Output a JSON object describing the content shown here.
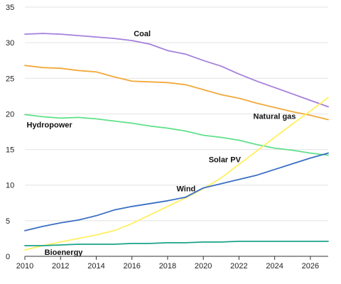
{
  "chart_data": {
    "type": "line",
    "title": "",
    "xlabel": "",
    "ylabel": "",
    "xlim": [
      2010,
      2027
    ],
    "ylim": [
      0,
      35
    ],
    "x_ticks": [
      2010,
      2012,
      2014,
      2016,
      2018,
      2020,
      2022,
      2024,
      2026
    ],
    "y_ticks": [
      0,
      5,
      10,
      15,
      20,
      25,
      30,
      35
    ],
    "grid": true,
    "legend": "none",
    "x": [
      2010,
      2011,
      2012,
      2013,
      2014,
      2015,
      2016,
      2017,
      2018,
      2019,
      2020,
      2021,
      2022,
      2023,
      2024,
      2025,
      2026,
      2027
    ],
    "series": [
      {
        "name": "Coal",
        "color": "#a57fdc",
        "values": [
          31.2,
          31.3,
          31.2,
          31.0,
          30.8,
          30.6,
          30.3,
          29.8,
          28.9,
          28.4,
          27.5,
          26.7,
          25.6,
          24.6,
          23.7,
          22.8,
          21.9,
          21.0
        ]
      },
      {
        "name": "Natural gas",
        "color": "#f2a93b",
        "values": [
          26.8,
          26.5,
          26.4,
          26.1,
          25.9,
          25.2,
          24.6,
          24.5,
          24.4,
          24.1,
          23.4,
          22.7,
          22.2,
          21.5,
          20.9,
          20.3,
          19.8,
          19.2
        ]
      },
      {
        "name": "Hydropower",
        "color": "#5fe08a",
        "values": [
          19.9,
          19.6,
          19.4,
          19.5,
          19.3,
          19.0,
          18.7,
          18.3,
          18.0,
          17.6,
          17.0,
          16.7,
          16.3,
          15.7,
          15.2,
          14.9,
          14.5,
          14.2
        ]
      },
      {
        "name": "Solar PV",
        "color": "#fff060",
        "values": [
          0.9,
          1.5,
          2.0,
          2.5,
          3.0,
          3.6,
          4.6,
          5.8,
          7.0,
          8.2,
          9.5,
          11.0,
          12.9,
          14.8,
          16.7,
          18.6,
          20.4,
          22.3
        ]
      },
      {
        "name": "Wind",
        "color": "#3a6fc4",
        "values": [
          3.6,
          4.2,
          4.7,
          5.1,
          5.7,
          6.5,
          7.0,
          7.4,
          7.8,
          8.3,
          9.6,
          10.2,
          10.8,
          11.4,
          12.2,
          13.0,
          13.8,
          14.5
        ]
      },
      {
        "name": "Bioenergy",
        "color": "#1aa38a",
        "values": [
          1.5,
          1.5,
          1.6,
          1.7,
          1.7,
          1.7,
          1.8,
          1.8,
          1.9,
          1.9,
          2.0,
          2.0,
          2.1,
          2.1,
          2.1,
          2.1,
          2.1,
          2.1
        ]
      }
    ],
    "annotations": [
      {
        "series": "Coal",
        "text": "Coal",
        "at_x": 2016.1,
        "at_y": 30.9
      },
      {
        "series": "Natural gas",
        "text": "Natural gas",
        "at_x": 2022.8,
        "at_y": 19.3
      },
      {
        "series": "Hydropower",
        "text": "Hydropower",
        "at_x": 2010.1,
        "at_y": 18.1
      },
      {
        "series": "Solar PV",
        "text": "Solar PV",
        "at_x": 2020.3,
        "at_y": 13.2
      },
      {
        "series": "Wind",
        "text": "Wind",
        "at_x": 2018.5,
        "at_y": 9.1
      },
      {
        "series": "Bioenergy",
        "text": "Bioenergy",
        "at_x": 2011.1,
        "at_y": 0.2
      }
    ]
  }
}
